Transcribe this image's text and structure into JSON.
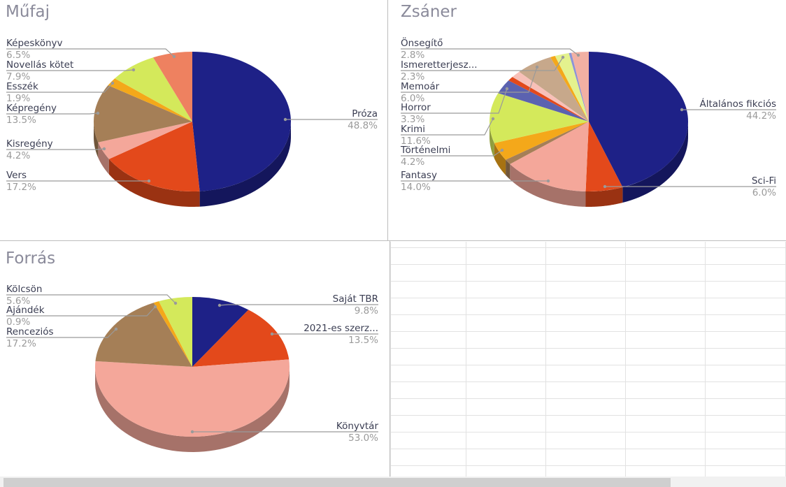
{
  "chart_data": [
    {
      "type": "pie",
      "title": "Műfaj",
      "slices": [
        {
          "label": "Próza",
          "value": 48.8,
          "value_text": "48.8%",
          "color": "#1e2187"
        },
        {
          "label": "Vers",
          "value": 17.2,
          "value_text": "17.2%",
          "color": "#e3491b"
        },
        {
          "label": "Kisregény",
          "value": 4.2,
          "value_text": "4.2%",
          "color": "#f4a79a"
        },
        {
          "label": "Képregény",
          "value": 13.5,
          "value_text": "13.5%",
          "color": "#a57f57"
        },
        {
          "label": "Esszék",
          "value": 1.9,
          "value_text": "1.9%",
          "color": "#f4a81a"
        },
        {
          "label": "Novellás kötet",
          "value": 7.9,
          "value_text": "7.9%",
          "color": "#d4e95b"
        },
        {
          "label": "Képeskönyv",
          "value": 6.5,
          "value_text": "6.5%",
          "color": "#ee8160"
        }
      ]
    },
    {
      "type": "pie",
      "title": "Zsáner",
      "slices": [
        {
          "label": "Általános fikciós",
          "value": 44.2,
          "value_text": "44.2%",
          "color": "#1e2187"
        },
        {
          "label": "Sci-Fi",
          "value": 6.0,
          "value_text": "6.0%",
          "color": "#e3491b"
        },
        {
          "label": "Fantasy",
          "value": 14.0,
          "value_text": "14.0%",
          "color": "#f4a79a"
        },
        {
          "label": "",
          "value": 1.2,
          "value_text": "",
          "color": "#a57f57"
        },
        {
          "label": "Történelmi",
          "value": 4.2,
          "value_text": "4.2%",
          "color": "#f4a81a"
        },
        {
          "label": "Krimi",
          "value": 11.6,
          "value_text": "11.6%",
          "color": "#d4e95b"
        },
        {
          "label": "Horror",
          "value": 3.3,
          "value_text": "3.3%",
          "color": "#5b62b0"
        },
        {
          "label": "",
          "value": 1.0,
          "value_text": "",
          "color": "#e3491b"
        },
        {
          "label": "",
          "value": 1.6,
          "value_text": "",
          "color": "#f8c0b8"
        },
        {
          "label": "Memoár",
          "value": 6.0,
          "value_text": "6.0%",
          "color": "#c7a88b"
        },
        {
          "label": "",
          "value": 0.8,
          "value_text": "",
          "color": "#f4a81a"
        },
        {
          "label": "Ismeretterjesz...",
          "value": 2.3,
          "value_text": "2.3%",
          "color": "#e4f28e"
        },
        {
          "label": "",
          "value": 0.4,
          "value_text": "",
          "color": "#8c93d6"
        },
        {
          "label": "Önsegítő",
          "value": 2.8,
          "value_text": "2.8%",
          "color": "#f2b0a3"
        }
      ]
    },
    {
      "type": "pie",
      "title": "Forrás",
      "slices": [
        {
          "label": "Saját TBR",
          "value": 9.8,
          "value_text": "9.8%",
          "color": "#1e2187"
        },
        {
          "label": "2021-es szerz...",
          "value": 13.5,
          "value_text": "13.5%",
          "color": "#e3491b"
        },
        {
          "label": "Könyvtár",
          "value": 53.0,
          "value_text": "53.0%",
          "color": "#f4a79a"
        },
        {
          "label": "Renceziós",
          "value": 17.2,
          "value_text": "17.2%",
          "color": "#a57f57"
        },
        {
          "label": "Ajándék",
          "value": 0.9,
          "value_text": "0.9%",
          "color": "#f4a81a"
        },
        {
          "label": "Kölcsön",
          "value": 5.6,
          "value_text": "5.6%",
          "color": "#d4e95b"
        }
      ]
    }
  ]
}
